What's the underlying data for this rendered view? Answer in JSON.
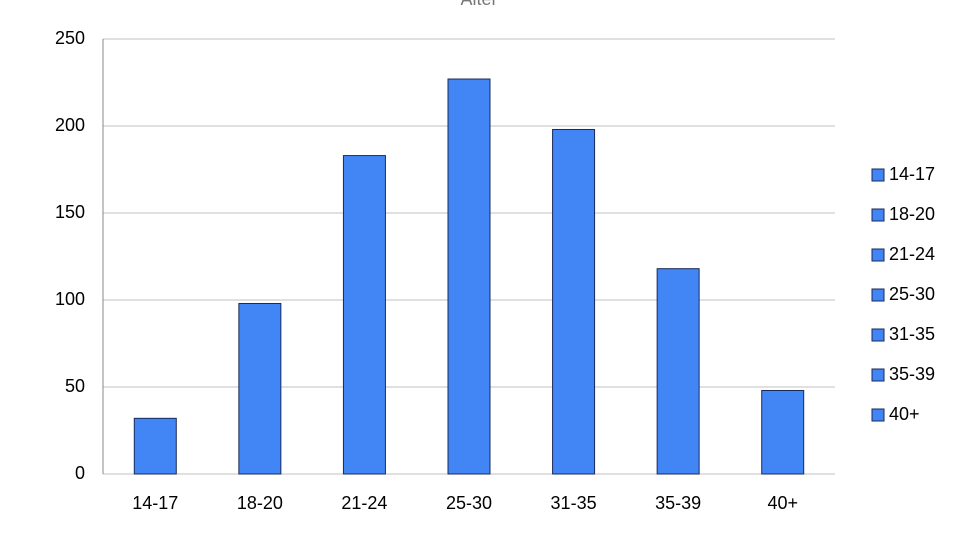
{
  "chart_data": {
    "type": "bar",
    "title": "Alter",
    "categories": [
      "14-17",
      "18-20",
      "21-24",
      "25-30",
      "31-35",
      "35-39",
      "40+"
    ],
    "values": [
      32,
      98,
      183,
      227,
      198,
      118,
      48
    ],
    "color": "#4285f4",
    "ylim": [
      0,
      250
    ],
    "yticks": [
      0,
      50,
      100,
      150,
      200,
      250
    ],
    "grid": true,
    "legend": "right"
  }
}
